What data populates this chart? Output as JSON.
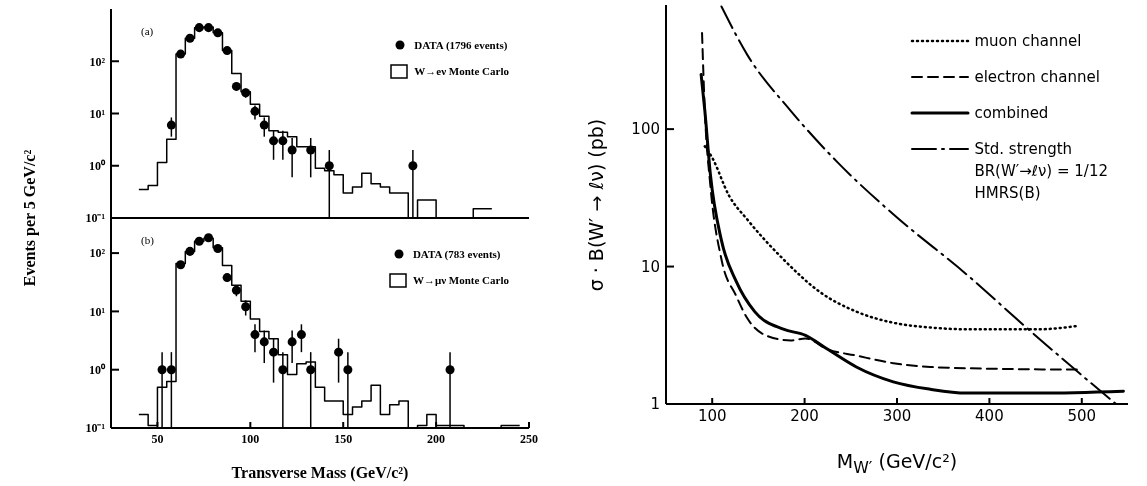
{
  "chart_data": [
    {
      "type": "histogram",
      "ylabel": "Events per 5 GeV/c²",
      "annotations": [
        "(a)"
      ],
      "legend": "top right",
      "log": "y",
      "tick_labels": "y",
      "xlim": [
        25,
        250
      ],
      "xticks": [
        50,
        100,
        150,
        200,
        250
      ],
      "ylim": [
        0.1,
        1000
      ],
      "yticks": [
        {
          "value": 0.1,
          "label": "10⁻¹"
        },
        {
          "value": 1,
          "label": "10⁰"
        },
        {
          "value": 10,
          "label": "10¹"
        },
        {
          "value": 100,
          "label": "10²"
        }
      ],
      "series": [
        {
          "type": "scatter",
          "name": "DATA (1796 events)",
          "color": "#000000",
          "marker": "circle",
          "x": [
            57.5,
            62.5,
            67.5,
            72.5,
            77.5,
            82.5,
            87.5,
            92.5,
            97.5,
            102.5,
            107.5,
            112.5,
            117.5,
            122.5,
            132.5,
            142.5,
            187.5
          ],
          "values": [
            6,
            137,
            275,
            440,
            440,
            350,
            160,
            33,
            25,
            11,
            6,
            3,
            3,
            2,
            2,
            1,
            1
          ],
          "errors": [
            2.4,
            12,
            17,
            21,
            21,
            19,
            13,
            5.7,
            5,
            3.3,
            2.4,
            1.7,
            1.7,
            1.4,
            1.4,
            [
              0.1,
              2
            ],
            [
              0.1,
              2
            ]
          ]
        },
        {
          "name": "W→eν Monte Carlo",
          "color": "#000000",
          "bins": [
            40,
            45,
            50,
            55,
            60,
            65,
            70,
            75,
            80,
            85,
            90,
            95,
            100,
            105,
            110,
            115,
            120,
            125,
            130,
            135,
            140,
            145,
            150,
            155,
            160,
            165,
            170,
            175,
            180,
            185,
            190,
            195,
            200,
            205,
            210,
            215,
            220,
            225,
            230
          ],
          "values": [
            0.35,
            0.42,
            1.15,
            3.2,
            137,
            275,
            440,
            450,
            350,
            160,
            58,
            26,
            15,
            8.9,
            4.7,
            4.4,
            3.6,
            2.3,
            2.3,
            0.9,
            0.8,
            0.67,
            0.3,
            0.39,
            0.72,
            0.45,
            0.39,
            0.3,
            0.3,
            null,
            0.22,
            0.22,
            null,
            null,
            null,
            null,
            0.15,
            0.15
          ]
        }
      ]
    },
    {
      "type": "histogram",
      "xlabel": "Transverse Mass  (GeV/c²)",
      "annotations": [
        "(b)"
      ],
      "legend": "top right",
      "log": "y",
      "xlim": [
        25,
        250
      ],
      "xticks": [
        50,
        100,
        150,
        200,
        250
      ],
      "ylim": [
        0.1,
        400
      ],
      "yticks": [
        {
          "value": 0.1,
          "label": "10⁻¹"
        },
        {
          "value": 1,
          "label": "10⁰"
        },
        {
          "value": 10,
          "label": "10¹"
        },
        {
          "value": 100,
          "label": "10²"
        }
      ],
      "series": [
        {
          "type": "scatter",
          "name": "DATA (783 events)",
          "color": "#000000",
          "marker": "circle",
          "x": [
            52.5,
            57.5,
            62.5,
            67.5,
            72.5,
            77.5,
            82.5,
            87.5,
            92.5,
            97.5,
            102.5,
            107.5,
            112.5,
            117.5,
            122.5,
            127.5,
            132.5,
            147.5,
            152.5,
            207.5
          ],
          "values": [
            1,
            1,
            63,
            107,
            160,
            183,
            120,
            38,
            23,
            12,
            4,
            3,
            2,
            1,
            3,
            4,
            1,
            2,
            1,
            1
          ],
          "errors": [
            [
              0.1,
              2
            ],
            [
              0.1,
              2
            ],
            7.9,
            10,
            13,
            14,
            11,
            6.2,
            4.8,
            3.5,
            2,
            1.7,
            1.4,
            [
              0.1,
              2
            ],
            1.7,
            2,
            [
              0.1,
              2
            ],
            1.4,
            [
              0.1,
              2
            ],
            [
              0.1,
              2
            ]
          ]
        },
        {
          "name": "W→μν Monte Carlo",
          "color": "#000000",
          "bins": [
            40,
            45,
            50,
            55,
            60,
            65,
            70,
            75,
            80,
            85,
            90,
            95,
            100,
            105,
            110,
            115,
            120,
            125,
            130,
            135,
            140,
            145,
            150,
            155,
            160,
            165,
            170,
            175,
            180,
            185,
            190,
            195,
            200,
            205,
            210,
            215,
            220,
            225,
            230,
            235,
            240,
            245
          ],
          "values": [
            0.17,
            0.11,
            0.5,
            0.63,
            66,
            107,
            160,
            180,
            123,
            61,
            28,
            15,
            7.4,
            4.5,
            3.4,
            1.8,
            0.83,
            1.27,
            1.35,
            0.5,
            0.29,
            0.29,
            0.17,
            0.23,
            0.29,
            0.54,
            0.17,
            0.25,
            0.29,
            null,
            0.11,
            0.17,
            0.11,
            0.11,
            0.11,
            null,
            null,
            null,
            null,
            0.11,
            0.11
          ]
        }
      ]
    },
    {
      "type": "line",
      "xlabel": "M$_{W′}$ (GeV/c²)",
      "ylabel": "σ · B(W′ → ℓν) (pb)",
      "legend": "top right",
      "log": "y",
      "xlim": [
        50,
        550
      ],
      "xticks": [
        100,
        200,
        300,
        400,
        500
      ],
      "ylim": [
        1,
        800
      ],
      "yticks": [
        1,
        10,
        100
      ],
      "series": [
        {
          "name": "muon channel",
          "color": "#000000",
          "line_style": "dotted",
          "x": [
            92,
            100,
            118,
            138,
            177,
            217,
            256,
            296,
            336,
            375,
            415,
            454,
            496
          ],
          "values": [
            75,
            62,
            33,
            22,
            11.3,
            6.5,
            4.7,
            3.9,
            3.6,
            3.5,
            3.5,
            3.5,
            3.7
          ]
        },
        {
          "name": "electron channel",
          "color": "#000000",
          "line_style": "dashed",
          "x": [
            89,
            92,
            98,
            110,
            126,
            138,
            161,
            185,
            201,
            225,
            256,
            296,
            336,
            415,
            498
          ],
          "values": [
            500,
            137,
            39,
            11.3,
            6.1,
            4.2,
            3.1,
            2.9,
            3.0,
            2.5,
            2.25,
            1.98,
            1.86,
            1.8,
            1.78
          ]
        },
        {
          "name": "combined",
          "color": "#000000",
          "line_style": "solid",
          "x": [
            88,
            92,
            98,
            110,
            126,
            146,
            177,
            201,
            225,
            256,
            296,
            336,
            375,
            454,
            545
          ],
          "values": [
            250,
            137,
            47,
            15.5,
            7.8,
            4.7,
            3.5,
            3.16,
            2.5,
            1.86,
            1.45,
            1.28,
            1.2,
            1.2,
            1.24
          ]
        },
        {
          "name": "Std. strength\nBR(W′→ℓν) = 1/12\nHMRS(B)",
          "color": "#000000",
          "line_style": "dashdot",
          "x": [
            110,
            138,
            185,
            236,
            296,
            375,
            438,
            494,
            537
          ],
          "values": [
            780,
            347,
            136,
            57,
            24,
            8.8,
            3.7,
            1.75,
            1.0
          ]
        }
      ]
    }
  ]
}
